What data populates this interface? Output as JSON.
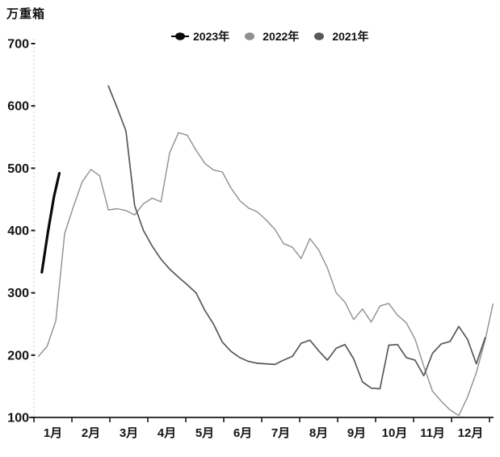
{
  "chart_data": {
    "type": "line",
    "title": "",
    "ylabel": "万重箱",
    "xlabel": "",
    "ylim": [
      100,
      700
    ],
    "y_ticks": [
      700,
      600,
      500,
      400,
      300,
      200,
      100
    ],
    "x_tick_labels": [
      "1月",
      "2月",
      "3月",
      "4月",
      "5月",
      "6月",
      "7月",
      "8月",
      "9月",
      "10月",
      "11月",
      "12月"
    ],
    "x_unit": "week-of-year (1-52)",
    "grid": false,
    "legend_position": "top-center",
    "series": [
      {
        "name": "2023年",
        "color": "#0a0a0a",
        "line_width": 3.2,
        "legend_marker": "line-dot",
        "x": [
          1.4,
          2.1,
          2.8,
          3.4
        ],
        "values": [
          333,
          398,
          455,
          492
        ]
      },
      {
        "name": "2022年",
        "color": "#8f8f8f",
        "line_width": 1.4,
        "legend_marker": "dot",
        "x": [
          1,
          2,
          3,
          4,
          5,
          6,
          7,
          8,
          9,
          10,
          11,
          12,
          13,
          14,
          15,
          16,
          17,
          18,
          19,
          20,
          21,
          22,
          23,
          24,
          25,
          26,
          27,
          28,
          29,
          30,
          31,
          32,
          33,
          34,
          35,
          36,
          37,
          38,
          39,
          40,
          41,
          42,
          43,
          44,
          45,
          46,
          47,
          48,
          49,
          50,
          51,
          52,
          52.9
        ],
        "values": [
          198,
          214,
          255,
          395,
          438,
          478,
          498,
          488,
          433,
          435,
          432,
          425,
          443,
          452,
          446,
          525,
          557,
          553,
          529,
          508,
          497,
          494,
          468,
          448,
          436,
          430,
          417,
          402,
          379,
          373,
          355,
          387,
          369,
          340,
          300,
          285,
          257,
          274,
          253,
          279,
          283,
          264,
          252,
          226,
          182,
          142,
          126,
          112,
          103,
          133,
          172,
          224,
          282
        ]
      },
      {
        "name": "2021年",
        "color": "#585858",
        "line_width": 1.7,
        "legend_marker": "dot",
        "x": [
          9,
          10,
          11,
          12,
          13,
          14,
          15,
          16,
          17,
          18,
          19,
          20,
          21,
          22,
          23,
          24,
          25,
          26,
          27,
          28,
          29,
          30,
          31,
          32,
          33,
          34,
          35,
          36,
          37,
          38,
          39,
          40,
          41,
          42,
          43,
          44,
          45,
          46,
          47,
          48,
          49,
          50,
          51,
          52
        ],
        "values": [
          632,
          597,
          560,
          440,
          400,
          375,
          354,
          338,
          325,
          313,
          300,
          272,
          250,
          221,
          206,
          196,
          190,
          187,
          186,
          185,
          192,
          198,
          219,
          224,
          207,
          192,
          211,
          217,
          194,
          157,
          147,
          146,
          216,
          217,
          196,
          192,
          167,
          203,
          218,
          222,
          246,
          225,
          186,
          228
        ]
      }
    ]
  }
}
